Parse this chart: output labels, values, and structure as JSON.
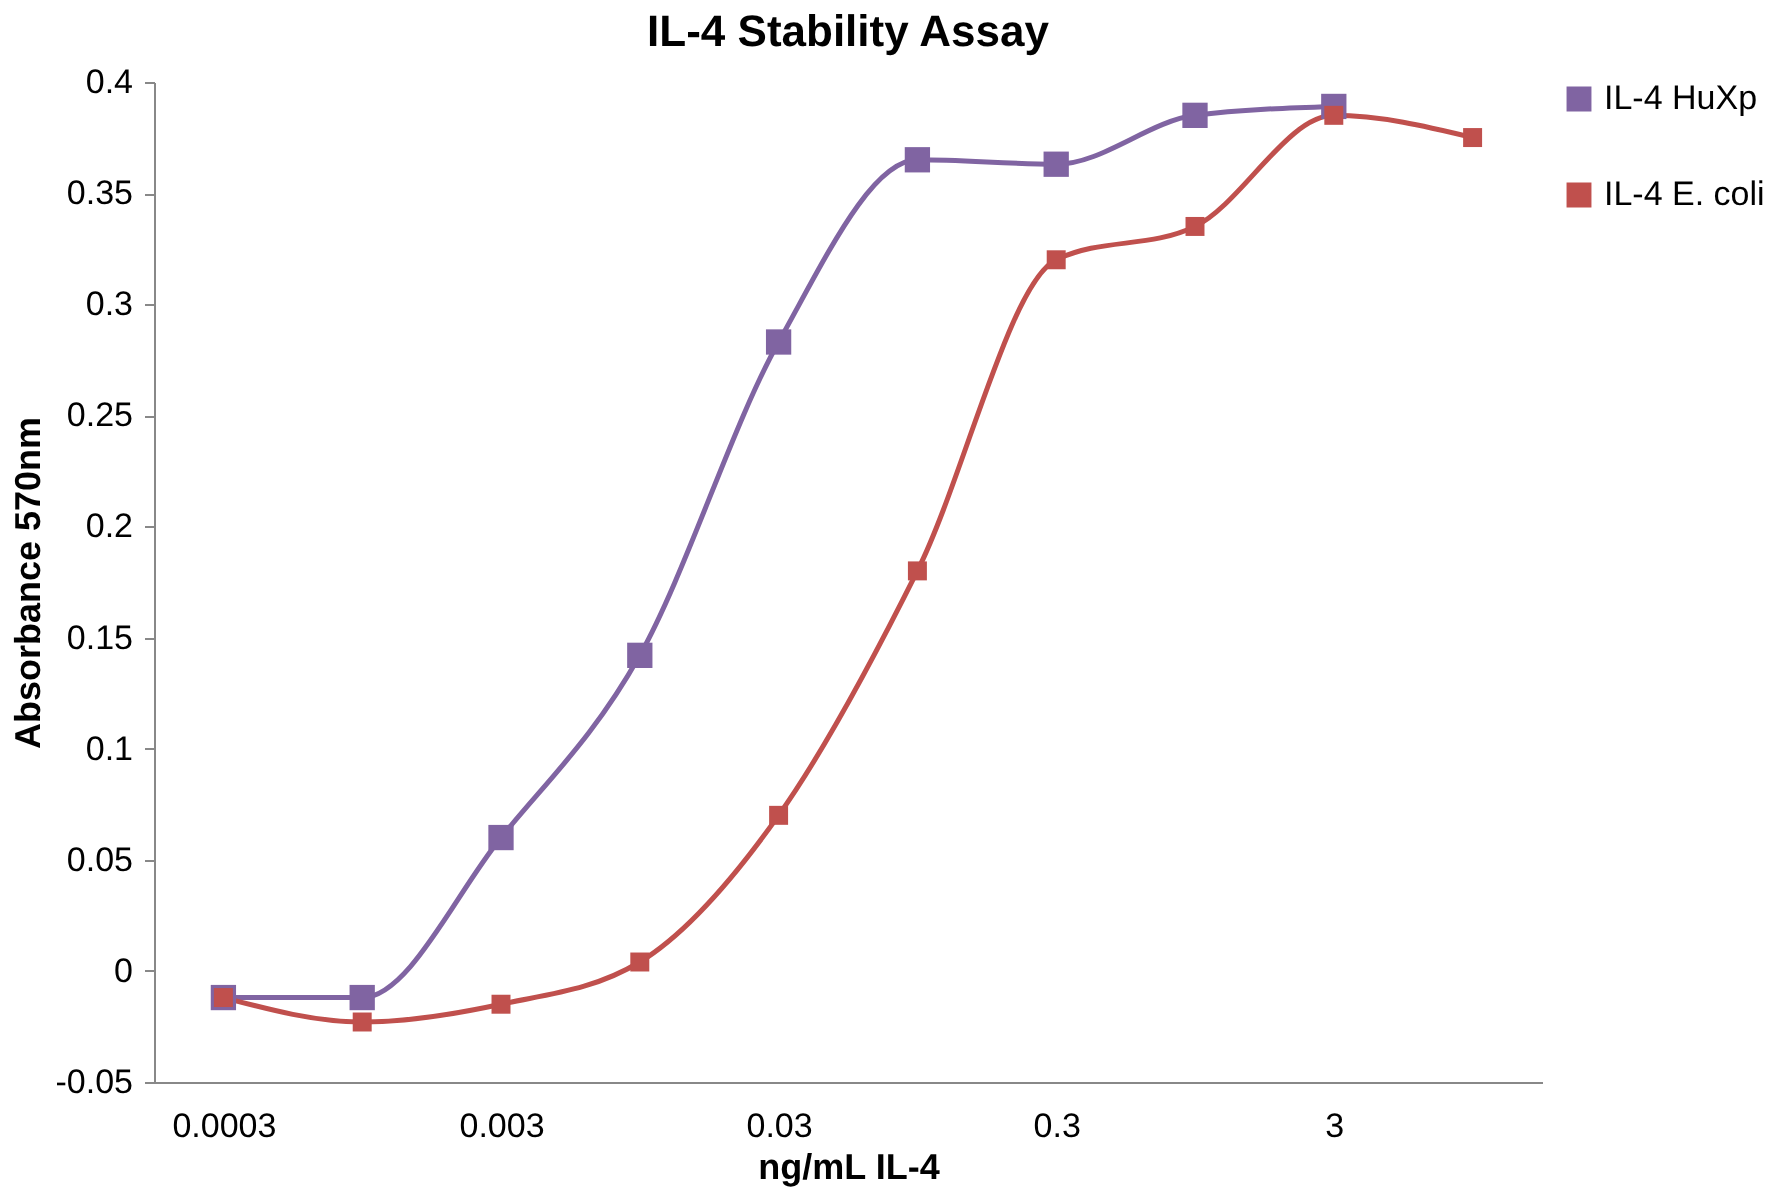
{
  "chart_data": {
    "type": "line",
    "title": "IL-4 Stability Assay",
    "xlabel": "ng/mL IL-4",
    "ylabel": "Absorbance 570nm",
    "categories": [
      "0.0003",
      null,
      "0.003",
      null,
      "0.03",
      null,
      "0.3",
      null,
      "3",
      null
    ],
    "series": [
      {
        "name": "IL-4 HuXp",
        "color": "#8064a2",
        "values": [
          -0.012,
          -0.012,
          0.06,
          0.142,
          0.283,
          0.365,
          0.363,
          0.385,
          0.389,
          null
        ]
      },
      {
        "name": "IL-4 E. coli",
        "color": "#c0504d",
        "values": [
          -0.012,
          -0.023,
          -0.015,
          0.004,
          0.07,
          0.18,
          0.32,
          0.335,
          0.385,
          0.375
        ]
      }
    ],
    "ylim": [
      -0.05,
      0.4
    ],
    "yticks": [
      -0.05,
      0,
      0.05,
      0.1,
      0.15,
      0.2,
      0.25,
      0.3,
      0.35,
      0.4
    ],
    "grid": false,
    "legend": "right",
    "marker": "square",
    "line_style": "solid"
  }
}
